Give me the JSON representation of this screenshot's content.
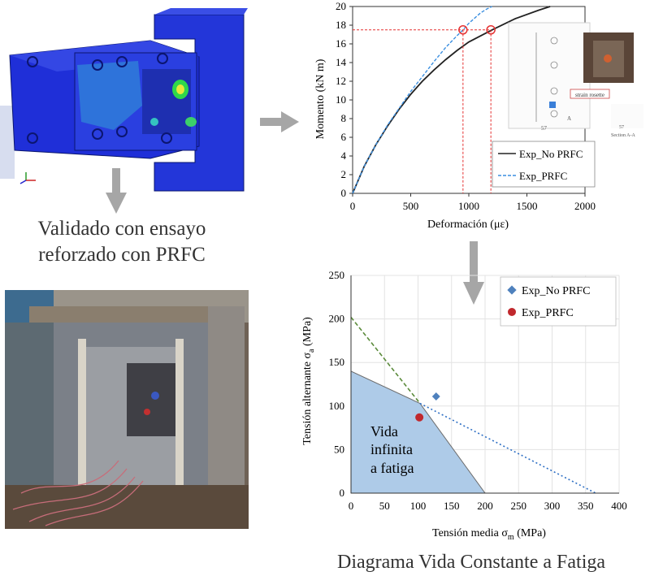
{
  "captions": {
    "validated_line1": "Validado con ensayo",
    "validated_line2": "reforzado con PRFC",
    "fatigue_diagram": "Diagrama Vida Constante a Fatiga"
  },
  "colors": {
    "arrow": "#a6a6a6",
    "fe_model_blue": "#1f2fd8",
    "region_fill": "#aecbe8",
    "no_prfc_marker": "#4f81bd",
    "prfc_marker": "#c0282d",
    "guide_red": "#e53030"
  },
  "icons": [
    "arrow-right-icon",
    "arrow-down-icon",
    "axis-triad-icon"
  ],
  "chart_data": [
    {
      "type": "line",
      "xlabel": "Deformación (με)",
      "ylabel": "Momento (kN m)",
      "xlim": [
        0,
        2000
      ],
      "ylim": [
        0,
        20
      ],
      "x_ticks": [
        "0",
        "500",
        "1000",
        "1500",
        "2000"
      ],
      "y_ticks": [
        "0",
        "2",
        "4",
        "6",
        "8",
        "10",
        "12",
        "14",
        "16",
        "18",
        "20"
      ],
      "legend_position": "bottom-right",
      "series": [
        {
          "name": "Exp_No PRFC",
          "color": "#222222",
          "style": "solid",
          "points": [
            [
              0,
              0
            ],
            [
              100,
              2.9
            ],
            [
              200,
              5.2
            ],
            [
              300,
              7.2
            ],
            [
              400,
              9
            ],
            [
              500,
              10.6
            ],
            [
              600,
              12
            ],
            [
              700,
              13.2
            ],
            [
              800,
              14.3
            ],
            [
              900,
              15.3
            ],
            [
              1000,
              16.2
            ],
            [
              1200,
              17.5
            ],
            [
              1400,
              18.7
            ],
            [
              1600,
              19.6
            ],
            [
              1700,
              20
            ]
          ]
        },
        {
          "name": "Exp_PRFC",
          "color": "#3b8fe0",
          "style": "dashed",
          "points": [
            [
              0,
              0
            ],
            [
              100,
              2.9
            ],
            [
              200,
              5.2
            ],
            [
              300,
              7.3
            ],
            [
              400,
              9.1
            ],
            [
              500,
              10.9
            ],
            [
              600,
              12.5
            ],
            [
              700,
              14.1
            ],
            [
              800,
              15.6
            ],
            [
              900,
              16.9
            ],
            [
              950,
              17.5
            ],
            [
              1000,
              18.2
            ],
            [
              1100,
              19.3
            ],
            [
              1150,
              19.7
            ],
            [
              1200,
              20
            ]
          ]
        }
      ],
      "annotations": {
        "guide_y": 17.5,
        "guide_x": [
          950,
          1190
        ]
      },
      "inset_labels": {
        "strain_rosette": "strain rosette",
        "section": "Section A-A",
        "dim_57": "57",
        "side_a": "A"
      }
    },
    {
      "type": "scatter",
      "xlabel": "Tensión media σm (MPa)",
      "xlabel_main": "Tensión media σ",
      "xlabel_sub": "m",
      "xlabel_unit": " (MPa)",
      "ylabel_main": "Tensión alternante σ",
      "ylabel_sub": "a",
      "ylabel_unit": " (MPa)",
      "xlim": [
        0,
        400
      ],
      "ylim": [
        0,
        250
      ],
      "x_ticks": [
        "0",
        "50",
        "100",
        "150",
        "200",
        "250",
        "300",
        "350",
        "400"
      ],
      "y_ticks": [
        "0",
        "50",
        "100",
        "150",
        "200",
        "250"
      ],
      "legend_position": "top-right",
      "grid": true,
      "region_label": [
        "Vida",
        "infinita",
        "a fatiga"
      ],
      "region_polygon": [
        [
          0,
          0
        ],
        [
          0,
          140
        ],
        [
          103,
          103
        ],
        [
          200,
          0
        ]
      ],
      "lines": [
        {
          "style": "dashed",
          "color": "#5a8a3a",
          "points": [
            [
              0,
              202
            ],
            [
              103,
              103
            ]
          ]
        },
        {
          "style": "dotted",
          "color": "#2e6fc4",
          "points": [
            [
              103,
              103
            ],
            [
              365,
              0
            ]
          ]
        }
      ],
      "series": [
        {
          "name": "Exp_No PRFC",
          "marker": "diamond",
          "color": "#4f81bd",
          "points": [
            [
              127,
              111
            ]
          ]
        },
        {
          "name": "Exp_PRFC",
          "marker": "circle",
          "color": "#c0282d",
          "points": [
            [
              102,
              87
            ]
          ]
        }
      ]
    }
  ]
}
